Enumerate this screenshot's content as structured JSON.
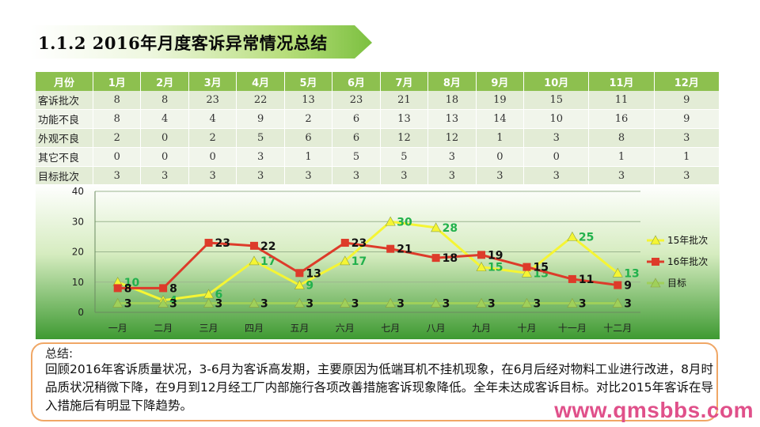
{
  "title": "1.1.2   2016年月度客诉异常情况总结",
  "table": {
    "header": [
      "月份",
      "1月",
      "2月",
      "3月",
      "4月",
      "5月",
      "6月",
      "7月",
      "8月",
      "9月",
      "10月",
      "11月",
      "12月"
    ],
    "rows": [
      {
        "label": "客诉批次",
        "values": [
          "8",
          "8",
          "23",
          "22",
          "13",
          "23",
          "21",
          "18",
          "19",
          "15",
          "11",
          "9"
        ]
      },
      {
        "label": "功能不良",
        "values": [
          "8",
          "4",
          "4",
          "9",
          "2",
          "6",
          "13",
          "13",
          "14",
          "10",
          "16",
          "9"
        ]
      },
      {
        "label": "外观不良",
        "values": [
          "2",
          "0",
          "2",
          "5",
          "6",
          "6",
          "12",
          "12",
          "1",
          "3",
          "8",
          "3"
        ]
      },
      {
        "label": "其它不良",
        "values": [
          "0",
          "0",
          "0",
          "3",
          "1",
          "5",
          "5",
          "3",
          "0",
          "0",
          "1",
          "1"
        ]
      },
      {
        "label": "目标批次",
        "values": [
          "3",
          "3",
          "3",
          "3",
          "3",
          "3",
          "3",
          "3",
          "3",
          "3",
          "3",
          "3"
        ]
      }
    ]
  },
  "chart_data": {
    "type": "line",
    "categories": [
      "一月",
      "二月",
      "三月",
      "四月",
      "五月",
      "六月",
      "七月",
      "八月",
      "九月",
      "十月",
      "十一月",
      "十二月"
    ],
    "ylim": [
      0,
      40
    ],
    "yticks": [
      0,
      10,
      20,
      30,
      40
    ],
    "grid": true,
    "legend_position": "right",
    "series": [
      {
        "name": "15年批次",
        "color": "#f5f534",
        "marker": "triangle",
        "label_color": "#22b14c",
        "values": [
          10,
          4,
          6,
          17,
          9,
          17,
          30,
          28,
          15,
          13,
          25,
          13
        ]
      },
      {
        "name": "16年批次",
        "color": "#dd3b2a",
        "marker": "square",
        "label_color": "#111111",
        "values": [
          8,
          8,
          23,
          22,
          13,
          23,
          21,
          18,
          19,
          15,
          11,
          9
        ]
      },
      {
        "name": "目标",
        "color": "#9fd05a",
        "marker": "triangle",
        "label_color": "#111111",
        "values": [
          3,
          3,
          3,
          3,
          3,
          3,
          3,
          3,
          3,
          3,
          3,
          3
        ]
      }
    ]
  },
  "summary": {
    "head": "总结:",
    "body": "回顾2016年客诉质量状况，3-6月为客诉高发期，主要原因为低端耳机不挂机现象，在6月后经对物料工业进行改进，8月时品质状况稍微下降，在9月到12月经工厂内部施行各项改善措施客诉现象降低。全年未达成客诉目标。对比2015年客诉在导入措施后有明显下降趋势。"
  },
  "watermark": "www.qmsbbs.com"
}
